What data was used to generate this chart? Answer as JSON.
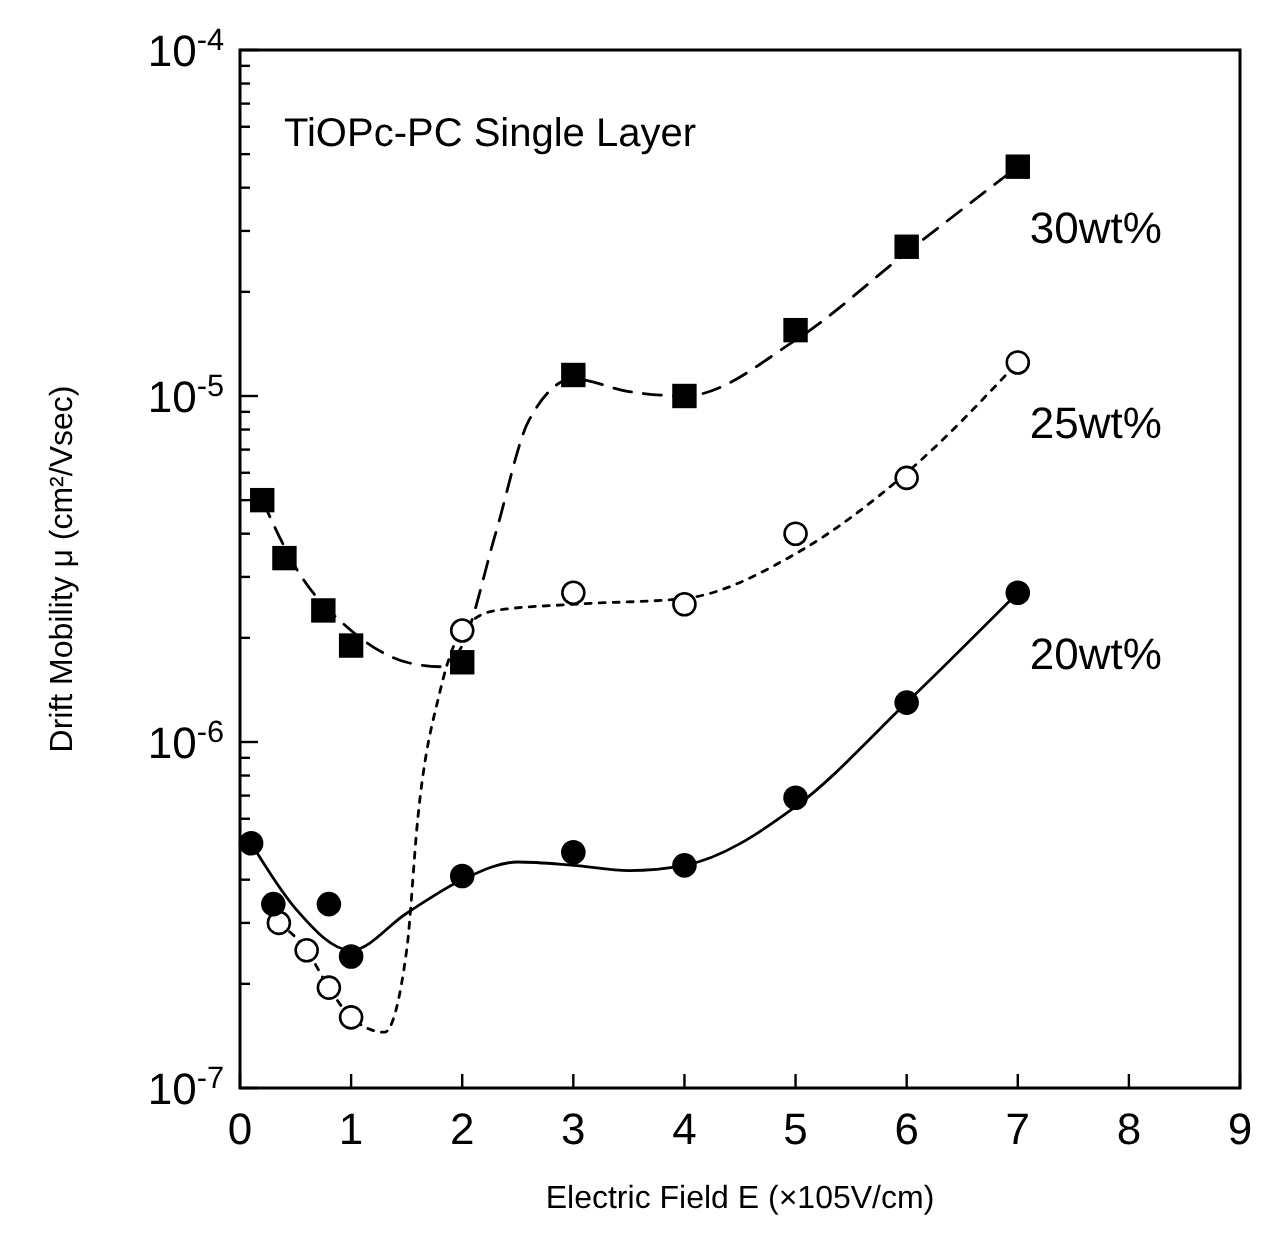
{
  "chart_data": {
    "type": "scatter",
    "title": "TiOPc-PC Single Layer",
    "xlabel": "Electric Field E (×105V/cm)",
    "ylabel": "Drift Mobility μ (cm²/Vsec)",
    "log": "y",
    "xlim": [
      0,
      9
    ],
    "xticks": [
      0,
      1,
      2,
      3,
      4,
      5,
      6,
      7,
      8,
      9
    ],
    "ylim": [
      1e-07,
      0.0001
    ],
    "yticks": [
      {
        "value": 1e-07,
        "label": "10$^{-7}$"
      },
      {
        "value": 2e-07,
        "label": null
      },
      {
        "value": 3e-07,
        "label": null
      },
      {
        "value": 4e-07,
        "label": null
      },
      {
        "value": 5e-07,
        "label": null
      },
      {
        "value": 6e-07,
        "label": null
      },
      {
        "value": 7e-07,
        "label": null
      },
      {
        "value": 8e-07,
        "label": null
      },
      {
        "value": 9e-07,
        "label": null
      },
      {
        "value": 1e-06,
        "label": "10$^{-6}$"
      },
      {
        "value": 2e-06,
        "label": null
      },
      {
        "value": 3e-06,
        "label": null
      },
      {
        "value": 4e-06,
        "label": null
      },
      {
        "value": 5e-06,
        "label": null
      },
      {
        "value": 6e-06,
        "label": null
      },
      {
        "value": 7e-06,
        "label": null
      },
      {
        "value": 8e-06,
        "label": null
      },
      {
        "value": 9e-06,
        "label": null
      },
      {
        "value": 1e-05,
        "label": "10$^{-5}$"
      },
      {
        "value": 2e-05,
        "label": null
      },
      {
        "value": 3e-05,
        "label": null
      },
      {
        "value": 4e-05,
        "label": null
      },
      {
        "value": 5e-05,
        "label": null
      },
      {
        "value": 6e-05,
        "label": null
      },
      {
        "value": 7e-05,
        "label": null
      },
      {
        "value": 8e-05,
        "label": null
      },
      {
        "value": 9e-05,
        "label": null
      },
      {
        "value": 0.0001,
        "label": "10$^{-4}$"
      }
    ],
    "series": [
      {
        "name": "30wt%",
        "color": "#000000",
        "marker": "square",
        "x": [
          0.2,
          0.4,
          0.75,
          1.0,
          2.0,
          3.0,
          4.0,
          5.0,
          6.0,
          7.0
        ],
        "values": [
          5e-06,
          3.4e-06,
          2.4e-06,
          1.9e-06,
          1.7e-06,
          1.15e-05,
          1e-05,
          1.55e-05,
          2.7e-05,
          4.6e-05
        ]
      },
      {
        "name": "25wt%",
        "color": "#ffffff",
        "marker": "circle",
        "x": [
          0.35,
          0.6,
          0.8,
          1.0,
          2.0,
          3.0,
          4.0,
          5.0,
          6.0,
          7.0
        ],
        "values": [
          3e-07,
          2.5e-07,
          1.95e-07,
          1.6e-07,
          2.1e-06,
          2.7e-06,
          2.5e-06,
          4e-06,
          5.8e-06,
          1.25e-05
        ]
      },
      {
        "name": "20wt%",
        "color": "#000000",
        "marker": "circle",
        "x": [
          0.1,
          0.3,
          0.8,
          1.0,
          2.0,
          3.0,
          4.0,
          5.0,
          6.0,
          7.0
        ],
        "values": [
          5.1e-07,
          3.4e-07,
          3.4e-07,
          2.4e-07,
          4.1e-07,
          4.8e-07,
          4.4e-07,
          6.9e-07,
          1.3e-06,
          2.7e-06
        ]
      },
      {
        "type": "line",
        "color": "#000000",
        "line_style": "dashed",
        "x": [
          0.2,
          0.5,
          1.0,
          1.5,
          1.8,
          2.0,
          2.3,
          2.6,
          3.0,
          3.5,
          4.0,
          5.0,
          6.0,
          7.0
        ],
        "values": [
          5e-06,
          3.2e-06,
          2.1e-06,
          1.7e-06,
          1.65e-06,
          1.9e-06,
          4e-06,
          8.5e-06,
          1.12e-05,
          1.03e-05,
          1e-05,
          1.45e-05,
          2.6e-05,
          4.6e-05
        ]
      },
      {
        "type": "line",
        "color": "#000000",
        "line_style": "dotted",
        "x": [
          0.35,
          0.6,
          0.8,
          1.0,
          1.3,
          1.5,
          1.6,
          1.8,
          2.0,
          2.3,
          3.0,
          4.0,
          5.0,
          6.0,
          7.0
        ],
        "values": [
          3e-07,
          2.5e-07,
          1.95e-07,
          1.6e-07,
          1.45e-07,
          2.5e-07,
          6e-07,
          1.4e-06,
          2.1e-06,
          2.4e-06,
          2.5e-06,
          2.6e-06,
          3.5e-06,
          6e-06,
          1.25e-05
        ]
      },
      {
        "type": "line",
        "color": "#000000",
        "line_style": "solid",
        "x": [
          0.1,
          0.5,
          1.0,
          1.5,
          2.0,
          2.5,
          3.0,
          3.5,
          4.0,
          5.0,
          6.0,
          7.0
        ],
        "values": [
          5.1e-07,
          3.3e-07,
          2.5e-07,
          3.2e-07,
          4e-07,
          4.5e-07,
          4.4e-07,
          4.25e-07,
          4.4e-07,
          6.5e-07,
          1.3e-06,
          2.7e-06
        ]
      }
    ]
  }
}
